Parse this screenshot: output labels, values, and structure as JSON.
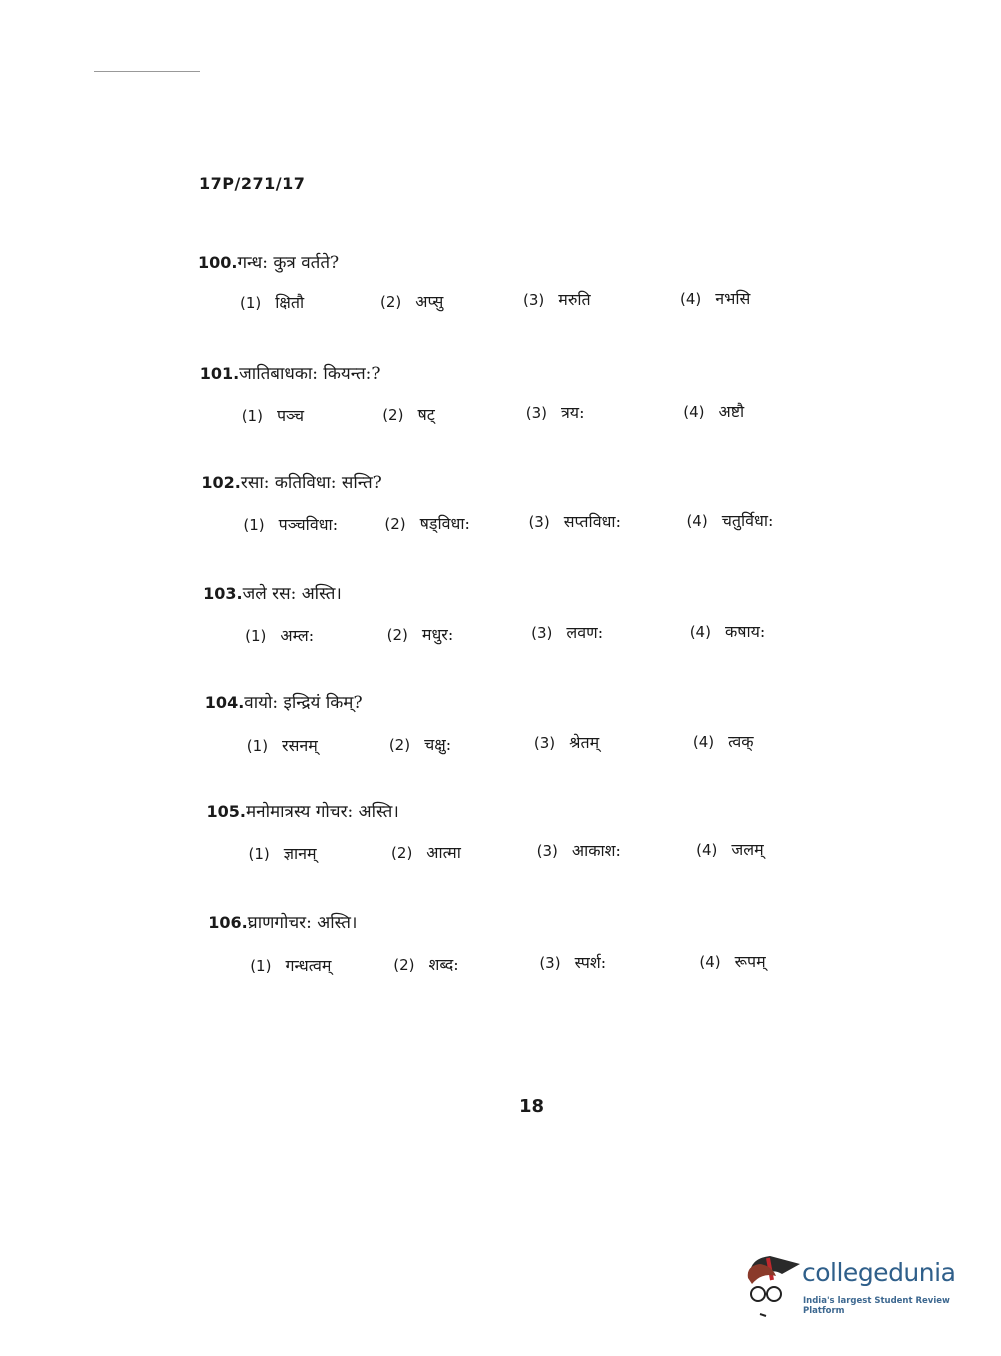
{
  "header": {
    "code": "17P/271/17"
  },
  "questions": [
    {
      "number": "100.",
      "text": "गन्ध: कुत्र वर्तते?",
      "options": [
        "क्षितौ",
        "अप्सु",
        "मरुति",
        "नभसि"
      ]
    },
    {
      "number": "101.",
      "text": "जातिबाधका: कियन्त:?",
      "options": [
        "पञ्च",
        "षट्",
        "त्रय:",
        "अष्टौ"
      ]
    },
    {
      "number": "102.",
      "text": "रसा: कतिविधा: सन्ति?",
      "options": [
        "पञ्चविधा:",
        "षड्विधा:",
        "सप्तविधा:",
        "चतुर्विधा:"
      ]
    },
    {
      "number": "103.",
      "text": "जले रस: अस्ति।",
      "options": [
        "अम्ल:",
        "मधुर:",
        "लवण:",
        "कषाय:"
      ]
    },
    {
      "number": "104.",
      "text": "वायो: इन्द्रियं किम्?",
      "options": [
        "रसनम्",
        "चक्षु:",
        "श्रेतम्",
        "त्वक्"
      ]
    },
    {
      "number": "105.",
      "text": "मनोमात्रस्य गोचर: अस्ति।",
      "options": [
        "ज्ञानम्",
        "आत्मा",
        "आकाश:",
        "जलम्"
      ]
    },
    {
      "number": "106.",
      "text": "घ्राणगोचर: अस्ति।",
      "options": [
        "गन्धत्वम्",
        "शब्द:",
        "स्पर्श:",
        "रूपम्"
      ]
    }
  ],
  "option_labels": [
    "(1)",
    "(2)",
    "(3)",
    "(4)"
  ],
  "footer": {
    "page_number": "18"
  },
  "watermark": {
    "brand": "collegedunia",
    "tagline": "India's largest Student Review Platform",
    "brand_color": "#2f5f8a"
  }
}
